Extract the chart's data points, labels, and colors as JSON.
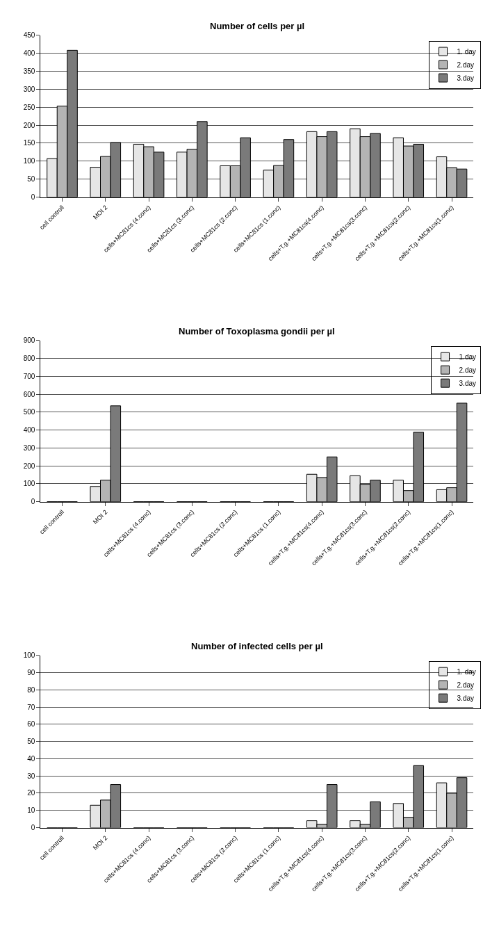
{
  "chart_data": [
    {
      "type": "bar",
      "title": "Number of cells per µl",
      "categories": [
        "cell controll",
        "MOI 2",
        "cells+MC81cs (4.conc)",
        "cells+MC81cs (3.conc)",
        "cells+MC81cs (2.conc)",
        "cells+MC81cs (1.conc)",
        "cells+T.g.+MC81cs(4.conc)",
        "cells+T.g.+MC81cs(3.conc)",
        "cells+T.g.+MC81cs(2.conc)",
        "cells+T.g.+MC81cs(1.conc)"
      ],
      "series": [
        {
          "name": "1. day",
          "color": "#e6e6e6",
          "values": [
            107,
            83,
            147,
            125,
            87,
            75,
            182,
            190,
            165,
            112
          ]
        },
        {
          "name": "2.day",
          "color": "#b4b4b4",
          "values": [
            253,
            113,
            140,
            133,
            87,
            88,
            168,
            168,
            142,
            82
          ]
        },
        {
          "name": "3.day",
          "color": "#7a7a7a",
          "values": [
            408,
            152,
            125,
            210,
            165,
            160,
            182,
            177,
            147,
            78
          ]
        }
      ],
      "ylim": [
        0,
        450
      ],
      "yticks": [
        0,
        50,
        100,
        150,
        200,
        250,
        300,
        350,
        400,
        450
      ],
      "grid": "y",
      "legend": "top right"
    },
    {
      "type": "bar",
      "title": "Number of Toxoplasma gondii per µl",
      "categories": [
        "cell controll",
        "MOI 2",
        "cells+MC81cs (4.conc)",
        "cells+MC81cs (3.conc)",
        "cells+MC81cs (2.conc)",
        "cells+MC81cs (1.conc)",
        "cells+T.g.+MC81cs(4.conc)",
        "cells+T.g.+MC81cs(3.conc)",
        "cells+T.g.+MC81cs(2.conc)",
        "cells+T.g.+MC81cs(1.conc)"
      ],
      "series": [
        {
          "name": "1.day",
          "color": "#e6e6e6",
          "values": [
            0,
            85,
            0,
            0,
            0,
            0,
            153,
            145,
            120,
            67
          ]
        },
        {
          "name": "2.day",
          "color": "#b4b4b4",
          "values": [
            0,
            120,
            0,
            0,
            0,
            0,
            135,
            97,
            62,
            78
          ]
        },
        {
          "name": "3.day",
          "color": "#7a7a7a",
          "values": [
            0,
            535,
            0,
            0,
            0,
            0,
            250,
            120,
            388,
            550
          ]
        }
      ],
      "ylim": [
        0,
        900
      ],
      "yticks": [
        0,
        100,
        200,
        300,
        400,
        500,
        600,
        700,
        800,
        900
      ],
      "grid": "y",
      "legend": "top right"
    },
    {
      "type": "bar",
      "title": "Number of infected cells per µl",
      "categories": [
        "cell controll",
        "MOI 2",
        "cells+MC81cs (4.conc)",
        "cells+MC81cs (3.conc)",
        "cells+MC81cs (2.conc)",
        "cells+MC81cs (1.conc)",
        "cells+T.g.+MC81cs(4.conc)",
        "cells+T.g.+MC81cs(3.conc)",
        "cells+T.g.+MC81cs(2.conc)",
        "cells+T.g.+MC81cs(1.conc)"
      ],
      "series": [
        {
          "name": "1. day",
          "color": "#e6e6e6",
          "values": [
            0,
            13,
            0,
            0,
            0,
            0,
            4,
            4,
            14,
            26
          ]
        },
        {
          "name": "2.day",
          "color": "#b4b4b4",
          "values": [
            0,
            16,
            0,
            0,
            0,
            0,
            2,
            2,
            6,
            20
          ]
        },
        {
          "name": "3.day",
          "color": "#7a7a7a",
          "values": [
            0,
            25,
            0,
            0,
            0,
            0,
            25,
            15,
            36,
            29
          ]
        }
      ],
      "ylim": [
        0,
        100
      ],
      "yticks": [
        0,
        10,
        20,
        30,
        40,
        50,
        60,
        70,
        80,
        90,
        100
      ],
      "grid": "y",
      "legend": "top right"
    }
  ]
}
